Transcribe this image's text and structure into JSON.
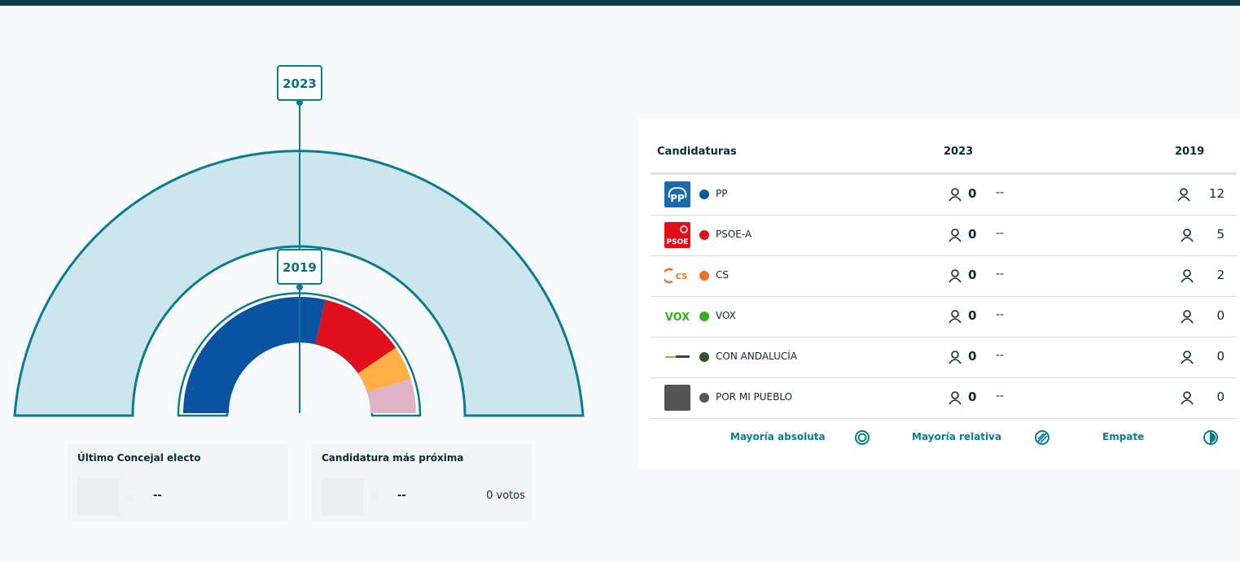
{
  "colors": {
    "accent": "#0a7c8c",
    "pp": "#0e56a4",
    "psoe": "#e10e1c",
    "cs": "#f26d21",
    "vox": "#2bb517",
    "con_andalucia": "#34532b",
    "por_mi_pueblo": "#555555",
    "outer_fill": "#cde5ec"
  },
  "hemicycle": {
    "year_outer": "2023",
    "year_inner": "2019",
    "seats_2019": [
      {
        "party": "PP",
        "seats": 12,
        "color": "#0a53a3"
      },
      {
        "party": "PSOE-A",
        "seats": 5,
        "color": "#e10e1c"
      },
      {
        "party": "CS",
        "seats": 2,
        "color": "#feaf45"
      },
      {
        "party": "OTROS",
        "seats": 2,
        "color": "#dfb5c5"
      }
    ]
  },
  "last_councillor": {
    "title": "Último Concejal electo",
    "name": "--"
  },
  "nearest_candidacy": {
    "title": "Candidatura más próxima",
    "name": "--",
    "votes": "0 votos"
  },
  "table": {
    "headers": {
      "candidacies": "Candidaturas",
      "year_a": "2023",
      "year_b": "2019"
    },
    "rows": [
      {
        "name": "PP",
        "logo": "pp-logo",
        "seats_2023": "0",
        "change": "--",
        "seats_2019": "12"
      },
      {
        "name": "PSOE-A",
        "logo": "psoe-logo",
        "seats_2023": "0",
        "change": "--",
        "seats_2019": "5"
      },
      {
        "name": "CS",
        "logo": "cs-logo",
        "seats_2023": "0",
        "change": "--",
        "seats_2019": "2"
      },
      {
        "name": "VOX",
        "logo": "vox-logo",
        "seats_2023": "0",
        "change": "--",
        "seats_2019": "0"
      },
      {
        "name": "CON ANDALUCÍA",
        "logo": "con-andalucia-logo",
        "seats_2023": "0",
        "change": "--",
        "seats_2019": "0"
      },
      {
        "name": "POR MI PUEBLO",
        "logo": "por-mi-pueblo-logo",
        "seats_2023": "0",
        "change": "--",
        "seats_2019": "0"
      }
    ]
  },
  "legend": {
    "absolute": "Mayoría absoluta",
    "relative": "Mayoría relativa",
    "tie": "Empate"
  }
}
